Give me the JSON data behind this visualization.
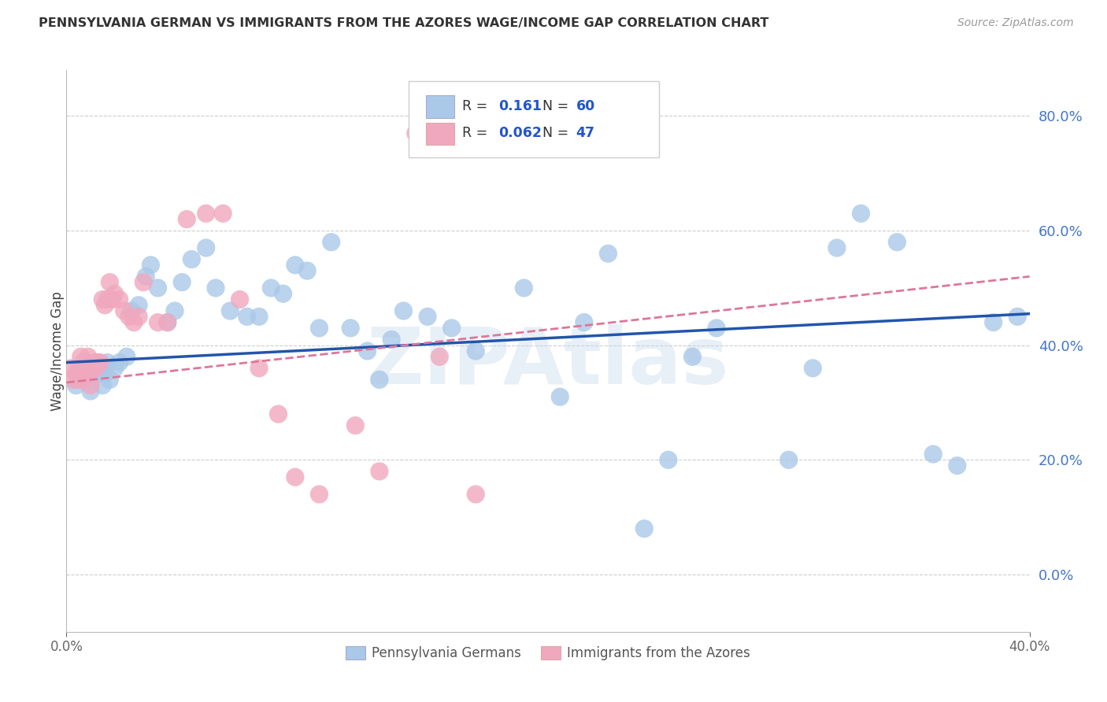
{
  "title": "PENNSYLVANIA GERMAN VS IMMIGRANTS FROM THE AZORES WAGE/INCOME GAP CORRELATION CHART",
  "source": "Source: ZipAtlas.com",
  "ylabel": "Wage/Income Gap",
  "blue_color": "#aac8e8",
  "pink_color": "#f0a8be",
  "trend_blue": "#2255aa",
  "trend_pink": "#dd7799",
  "watermark": "ZIPAtlas",
  "xmin": 0.0,
  "xmax": 0.4,
  "ymin": -0.1,
  "ymax": 0.88,
  "yticks": [
    0.0,
    0.2,
    0.4,
    0.6,
    0.8
  ],
  "xticks": [
    0.0,
    0.4
  ],
  "blue_x": [
    0.004,
    0.006,
    0.008,
    0.009,
    0.01,
    0.011,
    0.012,
    0.013,
    0.015,
    0.016,
    0.017,
    0.018,
    0.02,
    0.022,
    0.025,
    0.027,
    0.03,
    0.033,
    0.035,
    0.038,
    0.042,
    0.045,
    0.048,
    0.052,
    0.058,
    0.062,
    0.068,
    0.075,
    0.08,
    0.085,
    0.09,
    0.095,
    0.1,
    0.105,
    0.11,
    0.118,
    0.125,
    0.13,
    0.135,
    0.14,
    0.15,
    0.16,
    0.17,
    0.19,
    0.205,
    0.215,
    0.225,
    0.24,
    0.25,
    0.26,
    0.27,
    0.3,
    0.31,
    0.32,
    0.33,
    0.345,
    0.36,
    0.37,
    0.385,
    0.395
  ],
  "blue_y": [
    0.33,
    0.34,
    0.34,
    0.35,
    0.32,
    0.36,
    0.36,
    0.35,
    0.33,
    0.35,
    0.37,
    0.34,
    0.36,
    0.37,
    0.38,
    0.46,
    0.47,
    0.52,
    0.54,
    0.5,
    0.44,
    0.46,
    0.51,
    0.55,
    0.57,
    0.5,
    0.46,
    0.45,
    0.45,
    0.5,
    0.49,
    0.54,
    0.53,
    0.43,
    0.58,
    0.43,
    0.39,
    0.34,
    0.41,
    0.46,
    0.45,
    0.43,
    0.39,
    0.5,
    0.31,
    0.44,
    0.56,
    0.08,
    0.2,
    0.38,
    0.43,
    0.2,
    0.36,
    0.57,
    0.63,
    0.58,
    0.21,
    0.19,
    0.44,
    0.45
  ],
  "pink_x": [
    0.002,
    0.003,
    0.004,
    0.005,
    0.005,
    0.006,
    0.006,
    0.007,
    0.007,
    0.008,
    0.008,
    0.009,
    0.009,
    0.01,
    0.01,
    0.011,
    0.012,
    0.012,
    0.013,
    0.014,
    0.015,
    0.016,
    0.017,
    0.018,
    0.019,
    0.02,
    0.022,
    0.024,
    0.026,
    0.028,
    0.03,
    0.032,
    0.038,
    0.042,
    0.05,
    0.058,
    0.065,
    0.072,
    0.08,
    0.088,
    0.095,
    0.105,
    0.12,
    0.13,
    0.145,
    0.155,
    0.17
  ],
  "pink_y": [
    0.36,
    0.34,
    0.35,
    0.34,
    0.36,
    0.35,
    0.38,
    0.34,
    0.37,
    0.35,
    0.37,
    0.35,
    0.38,
    0.36,
    0.33,
    0.36,
    0.36,
    0.37,
    0.37,
    0.37,
    0.48,
    0.47,
    0.48,
    0.51,
    0.48,
    0.49,
    0.48,
    0.46,
    0.45,
    0.44,
    0.45,
    0.51,
    0.44,
    0.44,
    0.62,
    0.63,
    0.63,
    0.48,
    0.36,
    0.28,
    0.17,
    0.14,
    0.26,
    0.18,
    0.77,
    0.38,
    0.14
  ],
  "legend_labels": [
    "Pennsylvania Germans",
    "Immigrants from the Azores"
  ],
  "legend_r1": "R = ",
  "legend_v1": "0.161",
  "legend_n1": "  N = ",
  "legend_nv1": "60",
  "legend_r2": "R = ",
  "legend_v2": "0.062",
  "legend_n2": "  N = ",
  "legend_nv2": "47"
}
